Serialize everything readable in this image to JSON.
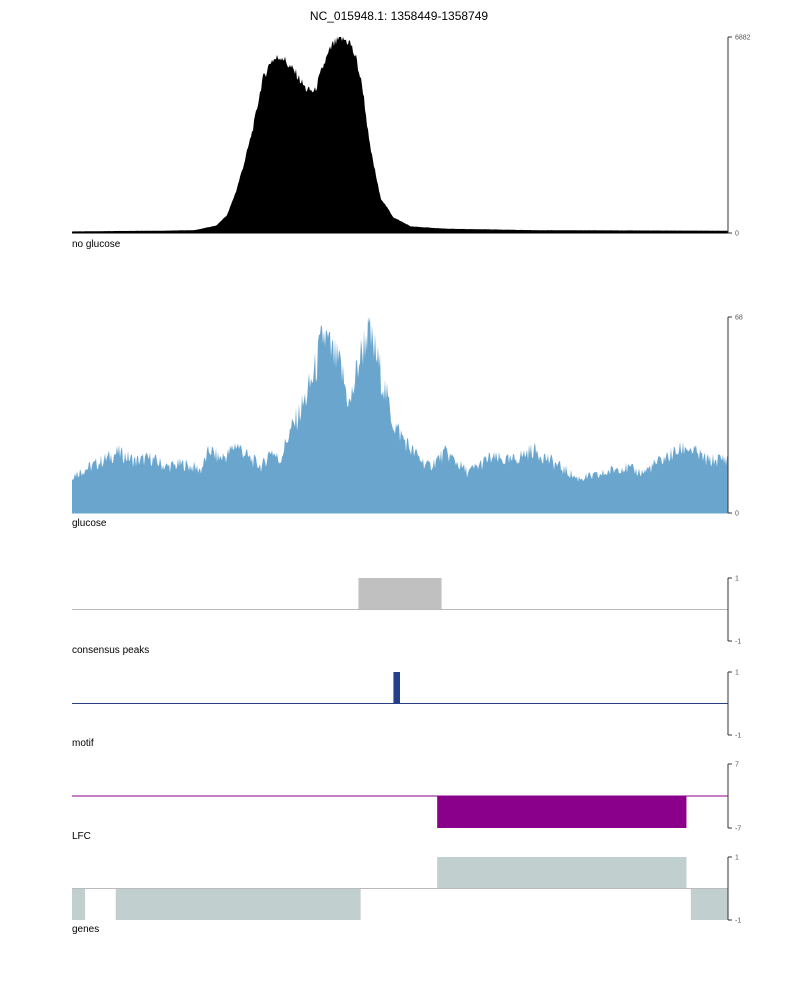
{
  "page": {
    "title": "NC_015948.1: 1358449-1358749"
  },
  "chart_data": {
    "type": "area",
    "title": "NC_015948.1: 1358449-1358749",
    "region": {
      "chrom": "NC_015948.1",
      "start": 1358449,
      "end": 1358749
    },
    "tracks": [
      {
        "id": "no_glucose",
        "label": "no glucose",
        "type": "area",
        "color": "#000000",
        "ylim": [
          0,
          6882
        ],
        "ytick_labels": [
          "6882",
          "0"
        ],
        "x": [
          1358449,
          1358470,
          1358490,
          1358505,
          1358515,
          1358520,
          1358524,
          1358528,
          1358532,
          1358536,
          1358540,
          1358545,
          1358548,
          1358551,
          1358556,
          1358560,
          1358564,
          1358568,
          1358572,
          1358576,
          1358579,
          1358582,
          1358585,
          1358590,
          1358596,
          1358604,
          1358620,
          1358660,
          1358700,
          1358749
        ],
        "y": [
          55,
          70,
          80,
          100,
          260,
          640,
          1460,
          2530,
          3750,
          5340,
          6050,
          6210,
          5890,
          5650,
          5050,
          4960,
          5880,
          6580,
          6840,
          6700,
          6100,
          5050,
          3150,
          1260,
          550,
          230,
          150,
          100,
          90,
          80
        ]
      },
      {
        "id": "glucose",
        "label": "glucose",
        "type": "area",
        "color": "#6aa5cd",
        "ylim": [
          0,
          68
        ],
        "ytick_labels": [
          "68",
          "0"
        ],
        "x": [
          1358449,
          1358460,
          1358470,
          1358478,
          1358485,
          1358492,
          1358500,
          1358508,
          1358512,
          1358516,
          1358520,
          1358524,
          1358530,
          1358536,
          1358540,
          1358544,
          1358548,
          1358552,
          1358556,
          1358560,
          1358564,
          1358568,
          1358572,
          1358576,
          1358580,
          1358584,
          1358588,
          1358596,
          1358604,
          1358612,
          1358620,
          1358630,
          1358640,
          1358650,
          1358660,
          1358670,
          1358680,
          1358690,
          1358700,
          1358710,
          1358720,
          1358730,
          1358740,
          1358749
        ],
        "y": [
          13,
          17,
          21,
          18,
          19,
          16,
          17,
          15,
          22,
          19,
          20,
          24,
          19,
          16,
          22,
          18,
          27,
          33,
          40,
          49,
          62,
          55,
          50,
          37,
          52,
          63,
          55,
          31,
          22,
          16,
          21,
          14,
          19,
          18,
          22,
          17,
          12,
          13,
          16,
          14,
          19,
          23,
          18,
          19
        ]
      },
      {
        "id": "consensus_peaks",
        "label": "consensus peaks",
        "type": "intervals",
        "color": "#c0c0c0",
        "ylim": [
          -1,
          1
        ],
        "ytick_labels": [
          "1",
          "-1"
        ],
        "intervals": [
          {
            "start": 1358580,
            "end": 1358618,
            "value": 1
          }
        ]
      },
      {
        "id": "motif",
        "label": "motif",
        "type": "intervals",
        "color": "#24408a",
        "ylim": [
          -1,
          1
        ],
        "ytick_labels": [
          "1",
          "-1"
        ],
        "intervals": [
          {
            "start": 1358596,
            "end": 1358599,
            "value": 1
          }
        ]
      },
      {
        "id": "lfc",
        "label": "LFC",
        "type": "intervals",
        "color": "#8b008b",
        "ylim": [
          -7,
          7
        ],
        "ytick_labels": [
          "7",
          "-7"
        ],
        "intervals": [
          {
            "start": 1358616,
            "end": 1358730,
            "value": -7
          }
        ]
      },
      {
        "id": "genes",
        "label": "genes",
        "type": "intervals",
        "color": "#c2cfcf",
        "ylim": [
          -1,
          1
        ],
        "ytick_labels": [
          "1",
          "-1"
        ],
        "intervals": [
          {
            "start": 1358449,
            "end": 1358455,
            "value": -1
          },
          {
            "start": 1358469,
            "end": 1358581,
            "value": -1
          },
          {
            "start": 1358616,
            "end": 1358730,
            "value": 1
          },
          {
            "start": 1358732,
            "end": 1358749,
            "value": -1
          }
        ]
      }
    ]
  }
}
